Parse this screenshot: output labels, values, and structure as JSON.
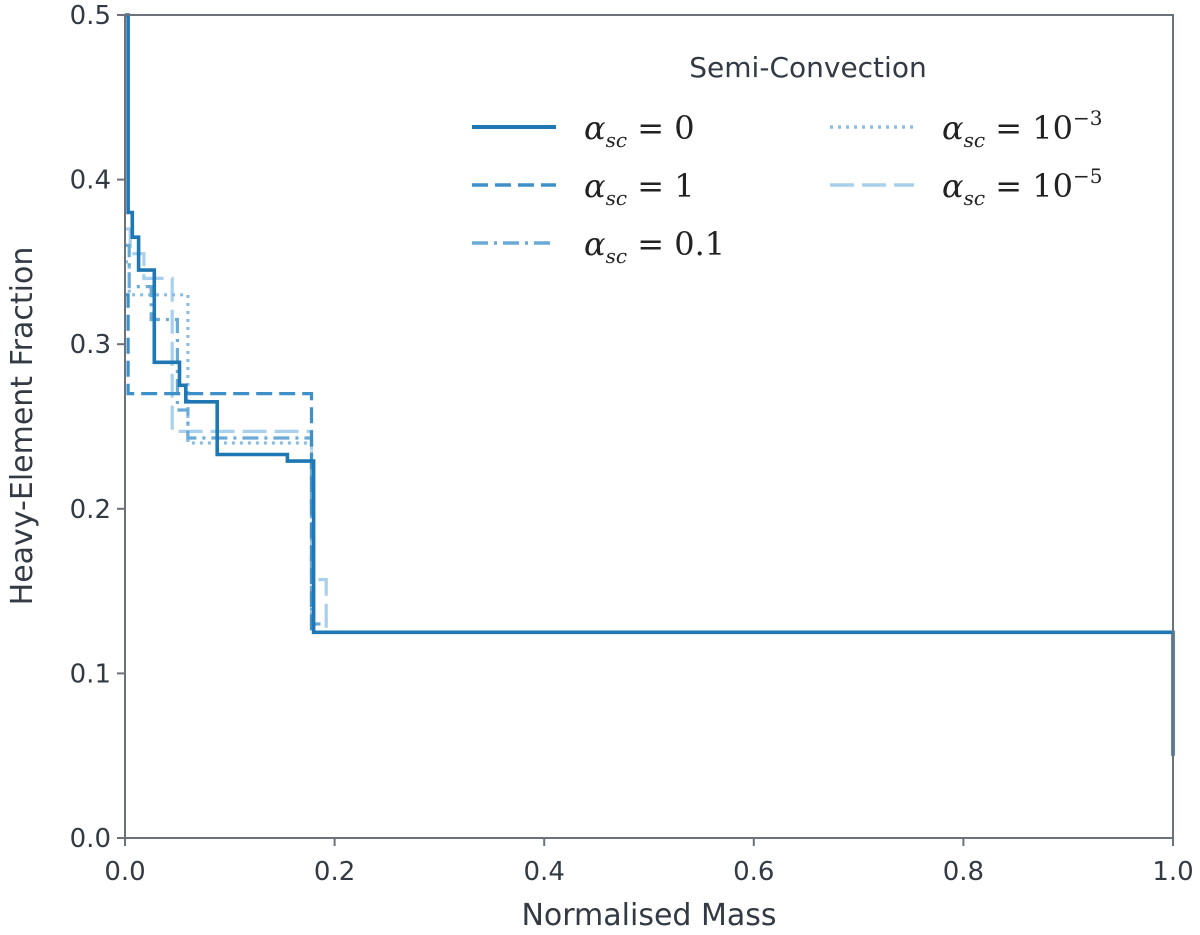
{
  "chart_data": {
    "type": "line",
    "xlabel": "Normalised Mass",
    "ylabel": "Heavy-Element Fraction",
    "xlim": [
      0.0,
      1.0
    ],
    "ylim": [
      0.0,
      0.5
    ],
    "xticks": [
      "0.0",
      "0.2",
      "0.4",
      "0.6",
      "0.8",
      "1.0"
    ],
    "yticks": [
      "0.0",
      "0.1",
      "0.2",
      "0.3",
      "0.4",
      "0.5"
    ],
    "legend": {
      "title": "Semi-Convection",
      "position": "top-right",
      "columns": 2
    },
    "series": [
      {
        "name": "α_sc = 0",
        "label_sub": "sc",
        "label_value": "0",
        "label_exp": "",
        "style": "solid",
        "color": "#1f77b4",
        "x": [
          0.0,
          0.003,
          0.003,
          0.007,
          0.007,
          0.013,
          0.013,
          0.028,
          0.028,
          0.052,
          0.052,
          0.058,
          0.058,
          0.088,
          0.088,
          0.12,
          0.155,
          0.155,
          0.18,
          0.18,
          1.0,
          1.0
        ],
        "y": [
          0.5,
          0.5,
          0.38,
          0.38,
          0.365,
          0.365,
          0.345,
          0.345,
          0.289,
          0.289,
          0.275,
          0.275,
          0.265,
          0.265,
          0.233,
          0.233,
          0.233,
          0.229,
          0.229,
          0.125,
          0.125,
          0.05
        ]
      },
      {
        "name": "α_sc = 1",
        "label_sub": "sc",
        "label_value": "1",
        "label_exp": "",
        "style": "dashed",
        "color": "#3f8fc8",
        "x": [
          0.0,
          0.003,
          0.003,
          0.178,
          0.178,
          1.0
        ],
        "y": [
          0.33,
          0.33,
          0.27,
          0.27,
          0.125,
          0.125
        ]
      },
      {
        "name": "α_sc = 0.1",
        "label_sub": "sc",
        "label_value": "0.1",
        "label_exp": "",
        "style": "dashdot",
        "color": "#6aaad6",
        "x": [
          0.0,
          0.004,
          0.004,
          0.025,
          0.025,
          0.05,
          0.05,
          0.06,
          0.06,
          0.178,
          0.178,
          0.185,
          0.185,
          1.0
        ],
        "y": [
          0.36,
          0.36,
          0.335,
          0.335,
          0.315,
          0.315,
          0.26,
          0.26,
          0.243,
          0.243,
          0.13,
          0.13,
          0.125,
          0.125
        ]
      },
      {
        "name": "α_sc = 10^−3",
        "label_sub": "sc",
        "label_value": "10",
        "label_exp": "−3",
        "style": "dotted",
        "color": "#8cbde3",
        "x": [
          0.0,
          0.004,
          0.004,
          0.03,
          0.03,
          0.06,
          0.06,
          0.178,
          0.178,
          1.0
        ],
        "y": [
          0.35,
          0.35,
          0.33,
          0.33,
          0.33,
          0.33,
          0.24,
          0.24,
          0.125,
          0.125
        ]
      },
      {
        "name": "α_sc = 10^−5",
        "label_sub": "sc",
        "label_value": "10",
        "label_exp": "−5",
        "style": "longdash",
        "color": "#a8cfeb",
        "x": [
          0.0,
          0.005,
          0.005,
          0.018,
          0.018,
          0.045,
          0.045,
          0.178,
          0.178,
          0.192,
          0.192,
          1.0
        ],
        "y": [
          0.37,
          0.37,
          0.355,
          0.355,
          0.34,
          0.34,
          0.247,
          0.247,
          0.157,
          0.157,
          0.125,
          0.125
        ]
      }
    ]
  }
}
